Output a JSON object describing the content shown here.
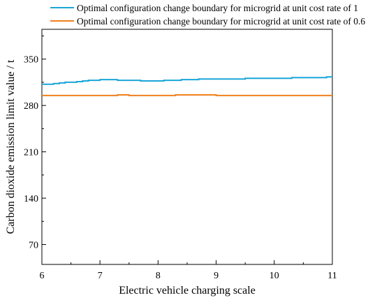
{
  "chart_data": {
    "type": "line",
    "title": "",
    "xlabel": "Electric vehicle charging scale",
    "ylabel": "Carbon dioxide emission limit value / t",
    "xlim": [
      6,
      11
    ],
    "ylim": [
      40,
      395
    ],
    "x_ticks": [
      6,
      7,
      8,
      9,
      10,
      11
    ],
    "y_ticks": [
      70,
      140,
      210,
      280,
      350
    ],
    "grid": false,
    "legend_position": "top",
    "series": [
      {
        "name": "Optimal configuration change boundary for microgrid at unit cost rate of 1",
        "color": "#1aa6d8",
        "x": [
          6.0,
          6.1,
          6.2,
          6.3,
          6.4,
          6.5,
          6.6,
          6.7,
          6.8,
          6.9,
          7.0,
          7.1,
          7.2,
          7.3,
          7.4,
          7.5,
          7.6,
          7.7,
          7.8,
          7.9,
          8.0,
          8.1,
          8.2,
          8.3,
          8.4,
          8.5,
          8.6,
          8.7,
          8.8,
          8.9,
          9.0,
          9.1,
          9.2,
          9.3,
          9.4,
          9.5,
          9.6,
          9.7,
          9.8,
          9.9,
          10.0,
          10.1,
          10.2,
          10.3,
          10.4,
          10.5,
          10.6,
          10.7,
          10.8,
          10.9,
          11.0
        ],
        "values": [
          312,
          312,
          313,
          314,
          315,
          315,
          316,
          317,
          318,
          318,
          319,
          319,
          319,
          318,
          318,
          318,
          318,
          317,
          317,
          317,
          317,
          318,
          318,
          318,
          319,
          319,
          319,
          320,
          320,
          320,
          320,
          320,
          320,
          320,
          320,
          321,
          321,
          321,
          321,
          321,
          321,
          321,
          321,
          322,
          322,
          322,
          322,
          322,
          322,
          323,
          323
        ]
      },
      {
        "name": "Optimal configuration change boundary for microgrid at unit cost rate of 0.6",
        "color": "#f0801e",
        "x": [
          6.0,
          6.5,
          7.0,
          7.3,
          7.5,
          8.0,
          8.3,
          8.7,
          9.0,
          9.5,
          10.0,
          10.5,
          11.0
        ],
        "values": [
          295,
          295,
          295,
          296,
          295,
          295,
          296,
          296,
          295,
          295,
          295,
          295,
          295
        ]
      }
    ]
  }
}
